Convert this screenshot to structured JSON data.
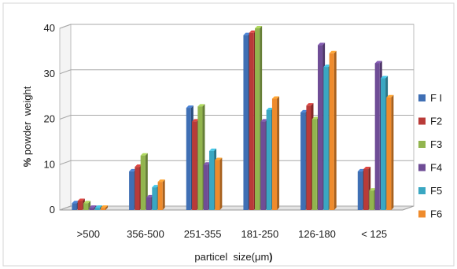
{
  "chart_data": {
    "type": "bar",
    "style": "3d-clustered-column",
    "categories": [
      ">500",
      "356-500",
      "251-355",
      "181-250",
      "126-180",
      "< 125"
    ],
    "series": [
      {
        "name": "F I",
        "color": "#3f6fb4",
        "values": [
          1.5,
          8.5,
          22.5,
          38.5,
          21.5,
          8.5
        ]
      },
      {
        "name": "F2",
        "color": "#b93b38",
        "values": [
          2.0,
          9.5,
          19.5,
          39.0,
          23.0,
          9.0
        ]
      },
      {
        "name": "F3",
        "color": "#92b54e",
        "values": [
          1.5,
          12.0,
          22.8,
          40.0,
          20.0,
          4.3
        ]
      },
      {
        "name": "F4",
        "color": "#6f4d96",
        "values": [
          0.5,
          2.8,
          10.0,
          19.5,
          36.3,
          32.3
        ]
      },
      {
        "name": "F5",
        "color": "#3aa7c2",
        "values": [
          0.5,
          5.0,
          13.0,
          22.0,
          31.5,
          29.0
        ]
      },
      {
        "name": "F6",
        "color": "#ef8b2c",
        "values": [
          0.5,
          6.2,
          11.0,
          24.5,
          34.5,
          24.8
        ]
      }
    ],
    "ylabel_bold": "%",
    "ylabel": " powder  weight",
    "xlabel": "particel  size(",
    "xlabel_unit": "μm",
    "xlabel_end": ")",
    "ylim": [
      0,
      40
    ],
    "yticks": [
      "0",
      "10",
      "20",
      "30",
      "40"
    ],
    "grid": true,
    "legend_position": "right"
  }
}
